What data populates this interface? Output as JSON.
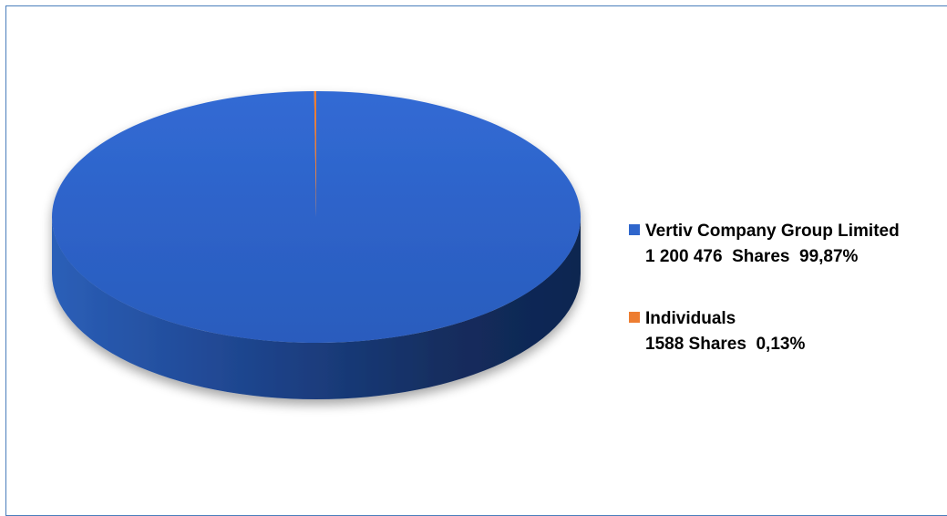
{
  "chart_data": {
    "type": "pie",
    "title": "",
    "three_d": true,
    "slices": [
      {
        "label_line1": "Vertiv Company Group Limited",
        "label_line2": "1 200 476  Shares  99,87%",
        "shares": 1200476,
        "percent": 99.87,
        "color": "#2f66cc"
      },
      {
        "label_line1": "Individuals",
        "label_line2": "1588 Shares  0,13%",
        "shares": 1588,
        "percent": 0.13,
        "color": "#ed7d31"
      }
    ],
    "legend_position": "right"
  }
}
